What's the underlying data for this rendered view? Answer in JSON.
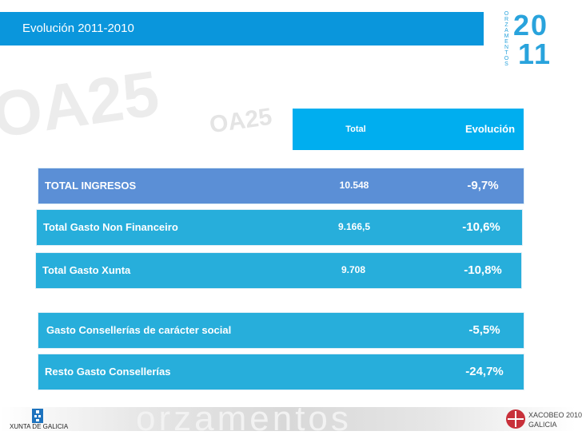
{
  "title": "Evolución 2011-2010",
  "logo": {
    "vertical": "ORZAMENTOS",
    "year_top": "20",
    "year_bottom": "11"
  },
  "watermark": {
    "big": "OA25",
    "small": "OA25",
    "footer": "orzamentos"
  },
  "header": {
    "total": "Total",
    "evolucion": "Evolución"
  },
  "rows": [
    {
      "label": "TOTAL INGRESOS",
      "total": "10.548",
      "evolucion": "-9,7%"
    },
    {
      "label": "Total Gasto Non Financeiro",
      "total": "9.166,5",
      "evolucion": "-10,6%"
    },
    {
      "label": "Total Gasto Xunta",
      "total": "9.708",
      "evolucion": "-10,8%"
    },
    {
      "label": "Gasto Consellerías de carácter social",
      "total": "",
      "evolucion": "-5,5%"
    },
    {
      "label": "Resto Gasto Consellerías",
      "total": "",
      "evolucion": "-24,7%"
    }
  ],
  "footer": {
    "left_logo": "XUNTA DE GALICIA",
    "right_logo_line1": "XACOBEO 2010",
    "right_logo_line2": "GALICIA"
  },
  "colors": {
    "title_bar": "#0a96dc",
    "header": "#00aeef",
    "ingresos_row": "#5b8fd6",
    "rows": "#27aedb"
  }
}
